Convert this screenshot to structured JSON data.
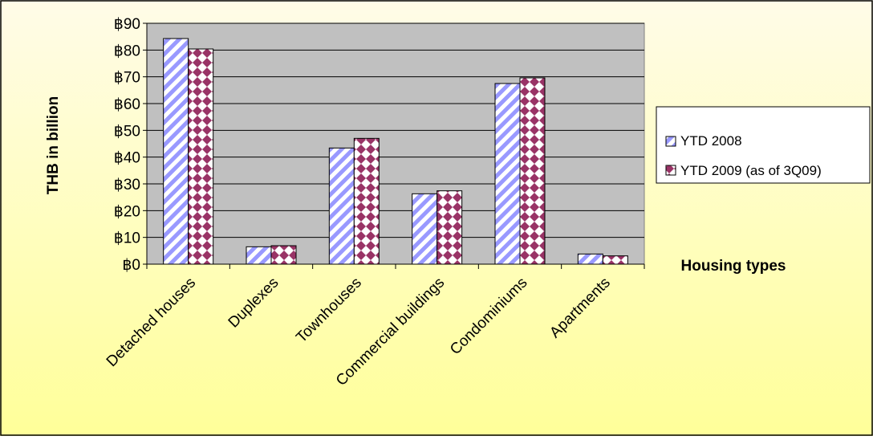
{
  "chart_data": {
    "type": "bar",
    "title": "",
    "xlabel": "Housing types",
    "ylabel": "THB in billion",
    "categories": [
      "Detached houses",
      "Duplexes",
      "Townhouses",
      "Commercial buildings",
      "Condominiums",
      "Apartments"
    ],
    "series": [
      {
        "name": "YTD 2008",
        "values": [
          84.3,
          6.5,
          43.4,
          26.3,
          67.5,
          3.8
        ],
        "color": "#9999ff",
        "pattern": "diagonal-stripes"
      },
      {
        "name": "YTD 2009 (as of 3Q09)",
        "values": [
          80.4,
          6.9,
          47.0,
          27.4,
          69.6,
          3.1
        ],
        "color": "#993366",
        "pattern": "diamond-checker"
      }
    ],
    "ylim": [
      0,
      90
    ],
    "yticks": [
      "฿0",
      "฿10",
      "฿20",
      "฿30",
      "฿40",
      "฿50",
      "฿60",
      "฿70",
      "฿80",
      "฿90"
    ],
    "grid": true,
    "legend_position": "right",
    "plot_background": "#c0c0c0",
    "page_background_gradient": [
      "#fffce8",
      "#ffff99"
    ]
  }
}
